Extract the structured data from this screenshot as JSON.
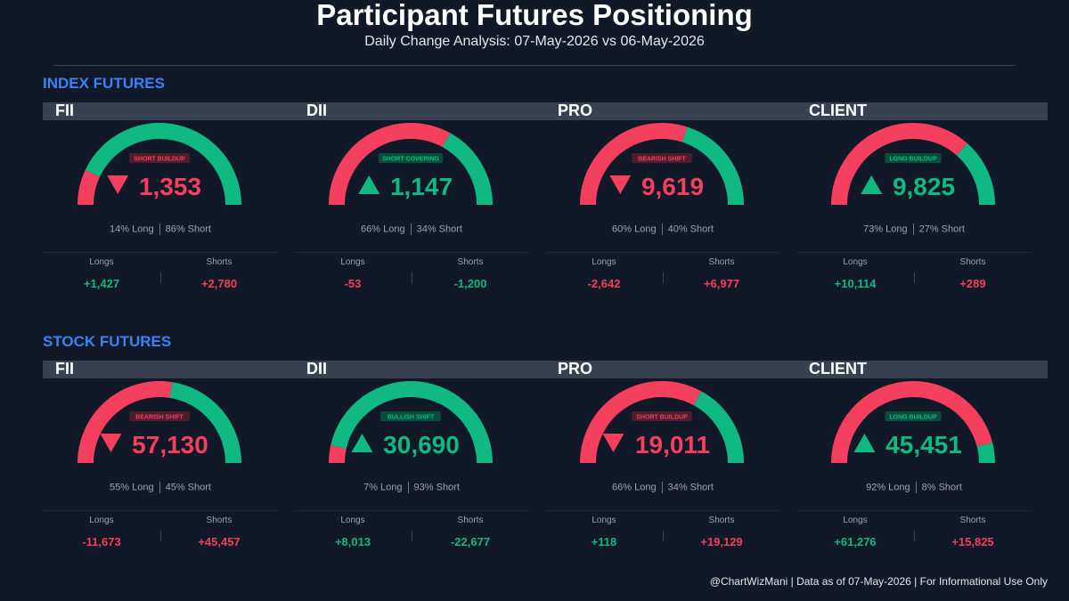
{
  "header": {
    "title": "Participant Futures Positioning",
    "subtitle": "Daily Change Analysis: 07-May-2026 vs 06-May-2026"
  },
  "sections": [
    {
      "title": "INDEX FUTURES",
      "cards": [
        {
          "name": "FII",
          "badge": "SHORT BUILDUP",
          "direction": "down",
          "value": "1,353",
          "long_pct": 14,
          "long_text": "14% Long",
          "short_text": "86% Short",
          "longs_label": "Longs",
          "shorts_label": "Shorts",
          "longs": "+1,427",
          "shorts": "+2,780"
        },
        {
          "name": "DII",
          "badge": "SHORT COVERING",
          "direction": "up",
          "value": "1,147",
          "long_pct": 66,
          "long_text": "66% Long",
          "short_text": "34% Short",
          "longs_label": "Longs",
          "shorts_label": "Shorts",
          "longs": "-53",
          "shorts": "-1,200"
        },
        {
          "name": "PRO",
          "badge": "BEARISH SHIFT",
          "direction": "down",
          "value": "9,619",
          "long_pct": 60,
          "long_text": "60% Long",
          "short_text": "40% Short",
          "longs_label": "Longs",
          "shorts_label": "Shorts",
          "longs": "-2,642",
          "shorts": "+6,977"
        },
        {
          "name": "CLIENT",
          "badge": "LONG BUILDUP",
          "direction": "up",
          "value": "9,825",
          "long_pct": 73,
          "long_text": "73% Long",
          "short_text": "27% Short",
          "longs_label": "Longs",
          "shorts_label": "Shorts",
          "longs": "+10,114",
          "shorts": "+289"
        }
      ]
    },
    {
      "title": "STOCK FUTURES",
      "cards": [
        {
          "name": "FII",
          "badge": "BEARISH SHIFT",
          "direction": "down",
          "value": "57,130",
          "long_pct": 55,
          "long_text": "55% Long",
          "short_text": "45% Short",
          "longs_label": "Longs",
          "shorts_label": "Shorts",
          "longs": "-11,673",
          "shorts": "+45,457"
        },
        {
          "name": "DII",
          "badge": "BULLISH SHIFT",
          "direction": "up",
          "value": "30,690",
          "long_pct": 7,
          "long_text": "7% Long",
          "short_text": "93% Short",
          "longs_label": "Longs",
          "shorts_label": "Shorts",
          "longs": "+8,013",
          "shorts": "-22,677"
        },
        {
          "name": "PRO",
          "badge": "SHORT BUILDUP",
          "direction": "down",
          "value": "19,011",
          "long_pct": 66,
          "long_text": "66% Long",
          "short_text": "34% Short",
          "longs_label": "Longs",
          "shorts_label": "Shorts",
          "longs": "+118",
          "shorts": "+19,129"
        },
        {
          "name": "CLIENT",
          "badge": "LONG BUILDUP",
          "direction": "up",
          "value": "45,451",
          "long_pct": 92,
          "long_text": "92% Long",
          "short_text": "8% Short",
          "longs_label": "Longs",
          "shorts_label": "Shorts",
          "longs": "+61,276",
          "shorts": "+15,825"
        }
      ]
    }
  ],
  "colors": {
    "long": "#10b981",
    "short": "#f43f5e",
    "background": "#111827",
    "section": "#3b82f6"
  },
  "footer": {
    "text": "@ChartWizMani | Data as of 07-May-2026 | For Informational Use Only"
  },
  "chart_data": {
    "type": "gauge",
    "series": [
      {
        "group": "INDEX FUTURES",
        "participant": "FII",
        "long_pct": 14,
        "short_pct": 86,
        "net_change": -1353,
        "longs_change": 1427,
        "shorts_change": 2780
      },
      {
        "group": "INDEX FUTURES",
        "participant": "DII",
        "long_pct": 66,
        "short_pct": 34,
        "net_change": 1147,
        "longs_change": -53,
        "shorts_change": -1200
      },
      {
        "group": "INDEX FUTURES",
        "participant": "PRO",
        "long_pct": 60,
        "short_pct": 40,
        "net_change": -9619,
        "longs_change": -2642,
        "shorts_change": 6977
      },
      {
        "group": "INDEX FUTURES",
        "participant": "CLIENT",
        "long_pct": 73,
        "short_pct": 27,
        "net_change": 9825,
        "longs_change": 10114,
        "shorts_change": 289
      },
      {
        "group": "STOCK FUTURES",
        "participant": "FII",
        "long_pct": 55,
        "short_pct": 45,
        "net_change": -57130,
        "longs_change": -11673,
        "shorts_change": 45457
      },
      {
        "group": "STOCK FUTURES",
        "participant": "DII",
        "long_pct": 7,
        "short_pct": 93,
        "net_change": 30690,
        "longs_change": 8013,
        "shorts_change": -22677
      },
      {
        "group": "STOCK FUTURES",
        "participant": "PRO",
        "long_pct": 66,
        "short_pct": 34,
        "net_change": -19011,
        "longs_change": 118,
        "shorts_change": 19129
      },
      {
        "group": "STOCK FUTURES",
        "participant": "CLIENT",
        "long_pct": 92,
        "short_pct": 8,
        "net_change": 45451,
        "longs_change": 61276,
        "shorts_change": 15825
      }
    ]
  }
}
